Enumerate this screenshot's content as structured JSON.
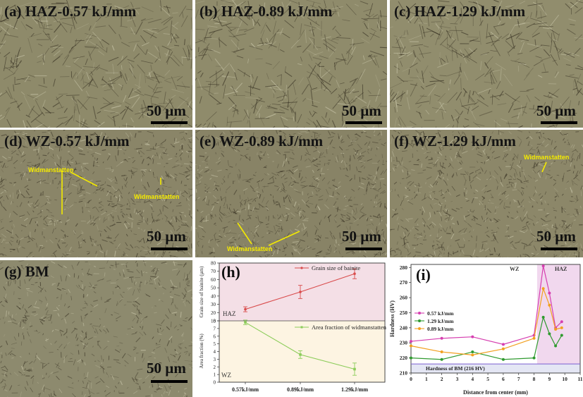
{
  "micrographs": [
    {
      "id": "a",
      "label": "(a) HAZ-0.57 kJ/mm",
      "scale": "50 µm",
      "tone": "#8e8a6a"
    },
    {
      "id": "b",
      "label": "(b) HAZ-0.89 kJ/mm",
      "scale": "50 µm",
      "tone": "#8f8b6b"
    },
    {
      "id": "c",
      "label": "(c) HAZ-1.29 kJ/mm",
      "scale": "50 µm",
      "tone": "#918d6d"
    },
    {
      "id": "d",
      "label": "(d) WZ-0.57 kJ/mm",
      "scale": "50 µm",
      "tone": "#8a8568",
      "annotations": [
        "Widmanstatten",
        "Widmanstatten"
      ]
    },
    {
      "id": "e",
      "label": "(e) WZ-0.89 kJ/mm",
      "scale": "50 µm",
      "tone": "#888366",
      "annotations": [
        "Widmanstatten"
      ]
    },
    {
      "id": "f",
      "label": "(f) WZ-1.29 kJ/mm",
      "scale": "50 µm",
      "tone": "#8c8769",
      "annotations": [
        "Widmanstatten"
      ]
    },
    {
      "id": "g",
      "label": "(g) BM",
      "scale": "50 µm",
      "tone": "#8d8a6e"
    }
  ],
  "chart_h": {
    "panel_label": "(h)",
    "type": "line",
    "categories": [
      "0.57kJ/mm",
      "0.89kJ/mm",
      "1.29kJ/mm"
    ],
    "series": [
      {
        "name": "Grain size of bainite",
        "values": [
          24,
          45,
          67
        ],
        "errors": [
          3,
          8,
          6
        ],
        "color": "#d94b4b"
      },
      {
        "name": "Area fraction of widmanstatten",
        "values": [
          7.8,
          3.6,
          1.7
        ],
        "errors": [
          0.3,
          0.5,
          0.8
        ],
        "color": "#8ccc5a"
      }
    ],
    "top_ylabel": "Grain size of bainite (µm)",
    "top_ylim": [
      10,
      80
    ],
    "top_ticks": [
      "10",
      "20",
      "30",
      "40",
      "50",
      "60",
      "70",
      "80"
    ],
    "bottom_ylabel": "Area fraction (%)",
    "bottom_ylim": [
      0,
      8
    ],
    "bottom_ticks": [
      "0",
      "1",
      "2",
      "3",
      "4",
      "5",
      "6",
      "7",
      "8"
    ],
    "region_top": "HAZ",
    "region_bottom": "WZ"
  },
  "chart_i": {
    "panel_label": "(i)",
    "type": "line",
    "xlabel": "Distance from center (mm)",
    "ylabel": "Hardness (HV)",
    "xlim": [
      0,
      11
    ],
    "ylim": [
      210,
      282
    ],
    "xticks": [
      "0",
      "1",
      "2",
      "3",
      "4",
      "5",
      "6",
      "7",
      "8",
      "9",
      "10",
      "11"
    ],
    "yticks": [
      "210",
      "220",
      "230",
      "240",
      "250",
      "260",
      "270",
      "280"
    ],
    "zone_left": "WZ",
    "zone_right": "HAZ",
    "reference_label": "Hardness of BM (216 HV)",
    "reference_value": 216,
    "series": [
      {
        "name": "0.57 kJ/mm",
        "color": "#d63fb0",
        "x": [
          0,
          2,
          4,
          6,
          8,
          8.6,
          9,
          9.4,
          9.8
        ],
        "y": [
          231,
          233,
          234,
          229,
          235,
          281,
          263,
          240,
          244
        ]
      },
      {
        "name": "1.29 kJ/mm",
        "color": "#2f9a2f",
        "x": [
          0,
          2,
          4,
          6,
          8,
          8.6,
          9,
          9.4,
          9.8
        ],
        "y": [
          220,
          219,
          224,
          219,
          220,
          247,
          236,
          228,
          235
        ]
      },
      {
        "name": "0.89 kJ/mm",
        "color": "#f2a020",
        "x": [
          0,
          2,
          4,
          6,
          8,
          8.6,
          9,
          9.4,
          9.8
        ],
        "y": [
          228,
          224,
          222,
          226,
          233,
          266,
          255,
          239,
          240
        ]
      }
    ]
  }
}
